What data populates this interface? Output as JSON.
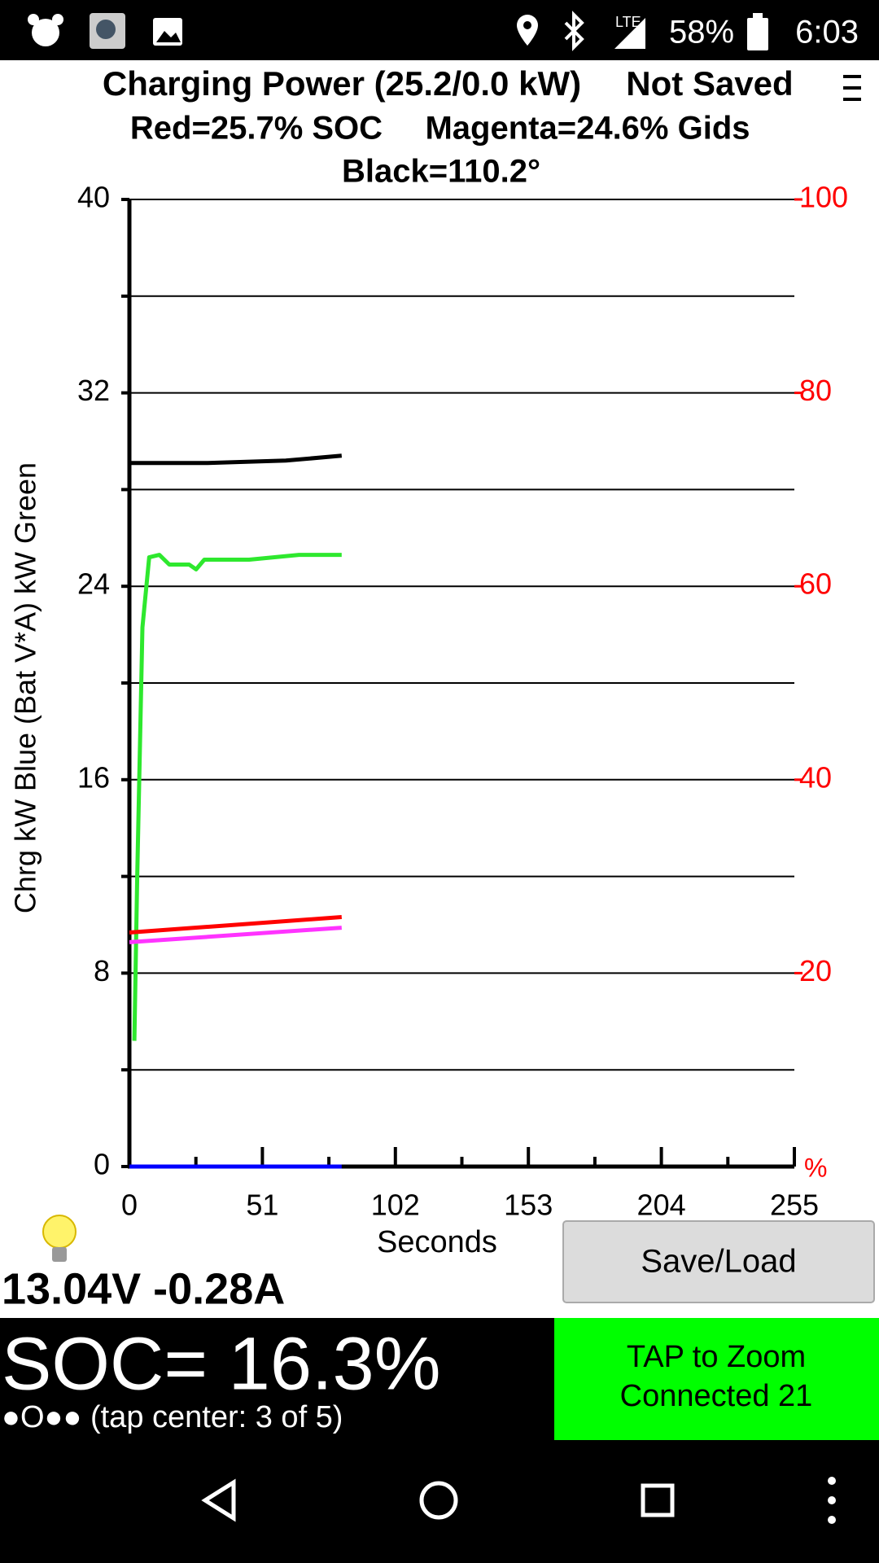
{
  "status_bar": {
    "network": "LTE",
    "battery": "58%",
    "time": "6:03"
  },
  "chart_data": {
    "type": "line",
    "title": "Charging Power (25.2/0.0 kW)",
    "save_state": "Not Saved",
    "subtitle": [
      "Red=25.7% SOC",
      "Magenta=24.6% Gids"
    ],
    "subtitle2": "Black=110.2°",
    "y_label": "Chrg kW Blue  (Bat V*A) kW Green",
    "x_label": "Seconds",
    "y2_unit_label": "%",
    "xlim": [
      0,
      255
    ],
    "xticks": [
      0,
      51,
      102,
      153,
      204,
      255
    ],
    "x_minor_ticks": [
      25.5,
      76.5,
      127.5,
      178.5,
      229.5
    ],
    "ylim": [
      0,
      40
    ],
    "yticks": [
      0,
      8,
      16,
      24,
      32,
      40
    ],
    "y_minor_ticks": [
      4,
      12,
      20,
      28,
      36
    ],
    "y2lim": [
      0,
      100
    ],
    "y2ticks": [
      20,
      40,
      60,
      80,
      100
    ],
    "y2_color": "#ff0000",
    "grid": true,
    "series": [
      {
        "color": "#2ee82e",
        "x": [
          1.9,
          3.0,
          5.0,
          7.6,
          11.5,
          15.3,
          22.9,
          25.6,
          28.7,
          45.9,
          65.0,
          81.4
        ],
        "values": [
          5.2,
          12,
          22.3,
          25.2,
          25.3,
          24.9,
          24.9,
          24.7,
          25.1,
          25.1,
          25.3,
          25.3
        ]
      },
      {
        "color": "#000000",
        "x": [
          0,
          30,
          60,
          81.4
        ],
        "values": [
          29.1,
          29.1,
          29.2,
          29.4
        ]
      },
      {
        "color": "#ff0000",
        "axis": "y2",
        "x": [
          0,
          81.4
        ],
        "values": [
          24.2,
          25.8
        ]
      },
      {
        "color": "#ff33ff",
        "axis": "y2",
        "x": [
          0,
          81.4
        ],
        "values": [
          23.2,
          24.7
        ]
      },
      {
        "color": "#0000ff",
        "x": [
          0,
          81.4
        ],
        "values": [
          0,
          0
        ]
      }
    ]
  },
  "readout": {
    "voltage_current": "13.04V -0.28A",
    "soc": "SOC= 16.3%",
    "page_indicator": "●O●● (tap center: 3 of 5)"
  },
  "buttons": {
    "save_load": "Save/Load",
    "zoom": [
      "TAP to Zoom",
      "Connected 21"
    ]
  }
}
